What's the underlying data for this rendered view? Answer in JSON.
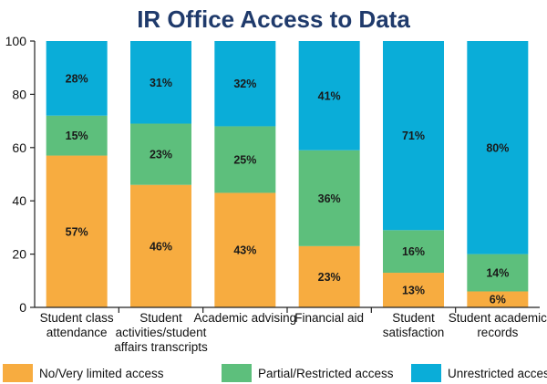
{
  "chart_data": {
    "type": "bar",
    "stacked": true,
    "title": "IR Office Access to Data",
    "xlabel": "",
    "ylabel": "",
    "ylim": [
      0,
      100
    ],
    "yticks": [
      0,
      20,
      40,
      60,
      80,
      100
    ],
    "grid": false,
    "legend_position": "bottom",
    "categories": [
      [
        "Student class",
        "attendance"
      ],
      [
        "Student",
        "activities/student",
        "affairs transcripts"
      ],
      [
        "Academic advising"
      ],
      [
        "Financial aid"
      ],
      [
        "Student",
        "satisfaction"
      ],
      [
        "Student academic",
        "records"
      ]
    ],
    "series": [
      {
        "name": "No/Very limited access",
        "color": "#f7ac40",
        "values": [
          57,
          46,
          43,
          23,
          13,
          6
        ],
        "labels": [
          "57%",
          "46%",
          "43%",
          "23%",
          "13%",
          "6%"
        ]
      },
      {
        "name": "Partial/Restricted access",
        "color": "#5dbf7c",
        "values": [
          15,
          23,
          25,
          36,
          16,
          14
        ],
        "labels": [
          "15%",
          "23%",
          "25%",
          "36%",
          "16%",
          "14%"
        ]
      },
      {
        "name": "Unrestricted access",
        "color": "#0aadd8",
        "values": [
          28,
          31,
          32,
          41,
          71,
          80
        ],
        "labels": [
          "28%",
          "31%",
          "32%",
          "41%",
          "71%",
          "80%"
        ]
      }
    ]
  }
}
